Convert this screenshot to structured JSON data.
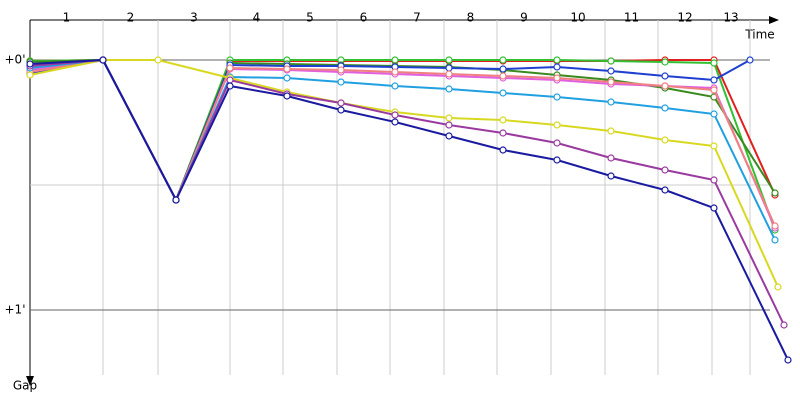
{
  "chart_data": {
    "type": "line",
    "x_label": "Time",
    "y_label": "Gap",
    "xlim": [
      0,
      745
    ],
    "ylim": [
      -0.16,
      1.26
    ],
    "xticks": [
      {
        "value": 73,
        "label": "1"
      },
      {
        "value": 128,
        "label": "2"
      },
      {
        "value": 200,
        "label": "3"
      },
      {
        "value": 253,
        "label": "4"
      },
      {
        "value": 307,
        "label": "5"
      },
      {
        "value": 360,
        "label": "6"
      },
      {
        "value": 414,
        "label": "7"
      },
      {
        "value": 467,
        "label": "8"
      },
      {
        "value": 521,
        "label": "9"
      },
      {
        "value": 575,
        "label": "10"
      },
      {
        "value": 628,
        "label": "11"
      },
      {
        "value": 682,
        "label": "12"
      },
      {
        "value": 720,
        "label": "13"
      }
    ],
    "yticks": [
      {
        "value": 0,
        "label": "+0'"
      },
      {
        "value": 0.5,
        "label": null
      },
      {
        "value": 1,
        "label": "+1'"
      }
    ],
    "grid": true,
    "series": [
      {
        "color": "#e02020",
        "x": [
          0,
          73,
          146,
          200,
          257,
          311,
          365,
          419,
          473,
          527,
          581,
          635,
          684,
          745
        ],
        "values": [
          0.004,
          0,
          0.56,
          0.004,
          0.004,
          0.004,
          0.004,
          0.004,
          0.004,
          0.004,
          0.004,
          0,
          0,
          0.54
        ]
      },
      {
        "color": "#30c030",
        "x": [
          0,
          73,
          146,
          200,
          257,
          311,
          365,
          419,
          473,
          527,
          581,
          635,
          684,
          745
        ],
        "values": [
          0.004,
          0,
          0.56,
          0,
          0,
          0,
          0,
          0,
          0,
          0,
          0.004,
          0.008,
          0.012,
          0.68
        ]
      },
      {
        "color": "#3a8a20",
        "x": [
          0,
          73,
          146,
          200,
          257,
          311,
          365,
          419,
          473,
          527,
          581,
          635,
          684,
          745
        ],
        "values": [
          0.008,
          0,
          0.56,
          0.012,
          0.016,
          0.02,
          0.024,
          0.028,
          0.04,
          0.06,
          0.08,
          0.112,
          0.148,
          0.532
        ]
      },
      {
        "color": "#1f3fd0",
        "x": [
          0,
          73,
          146,
          200,
          257,
          311,
          365,
          419,
          473,
          527,
          581,
          635,
          684,
          720
        ],
        "values": [
          0.056,
          0,
          0.56,
          0.02,
          0.024,
          0.024,
          0.028,
          0.032,
          0.036,
          0.028,
          0.044,
          0.064,
          0.08,
          0
        ]
      },
      {
        "color": "#e060e0",
        "x": [
          0,
          73,
          146,
          200,
          257,
          311,
          365,
          419,
          473,
          527,
          581,
          635,
          684,
          745
        ],
        "values": [
          0.04,
          0,
          0.56,
          0.036,
          0.04,
          0.048,
          0.056,
          0.064,
          0.072,
          0.08,
          0.096,
          0.104,
          0.112,
          0.672
        ]
      },
      {
        "color": "#f08080",
        "x": [
          0,
          73,
          146,
          200,
          257,
          311,
          365,
          419,
          473,
          527,
          581,
          635,
          684,
          745
        ],
        "values": [
          0.048,
          0,
          0.56,
          0.032,
          0.036,
          0.04,
          0.048,
          0.056,
          0.064,
          0.072,
          0.088,
          0.104,
          0.12,
          0.664
        ]
      },
      {
        "color": "#20a0e0",
        "x": [
          0,
          73,
          146,
          200,
          257,
          311,
          365,
          419,
          473,
          527,
          581,
          635,
          684,
          745
        ],
        "values": [
          0.032,
          0,
          0.56,
          0.068,
          0.072,
          0.088,
          0.104,
          0.116,
          0.132,
          0.148,
          0.168,
          0.192,
          0.216,
          0.72
        ]
      },
      {
        "color": "#d8d820",
        "x": [
          0,
          73,
          128,
          200,
          257,
          311,
          365,
          419,
          473,
          527,
          581,
          635,
          684,
          748
        ],
        "values": [
          0.06,
          0,
          0,
          0.072,
          0.128,
          0.172,
          0.208,
          0.232,
          0.24,
          0.26,
          0.284,
          0.32,
          0.344,
          0.908
        ]
      },
      {
        "color": "#9a3aa0",
        "x": [
          0,
          73,
          146,
          200,
          257,
          311,
          365,
          419,
          473,
          527,
          581,
          635,
          684,
          754
        ],
        "values": [
          0.024,
          0,
          0.56,
          0.08,
          0.136,
          0.172,
          0.22,
          0.26,
          0.292,
          0.332,
          0.392,
          0.44,
          0.48,
          1.06
        ]
      },
      {
        "color": "#1a1aa0",
        "x": [
          0,
          73,
          146,
          200,
          257,
          311,
          365,
          419,
          473,
          527,
          581,
          635,
          684,
          758
        ],
        "values": [
          0.016,
          0,
          0.56,
          0.104,
          0.144,
          0.2,
          0.248,
          0.304,
          0.36,
          0.4,
          0.464,
          0.52,
          0.592,
          1.2
        ]
      }
    ]
  }
}
